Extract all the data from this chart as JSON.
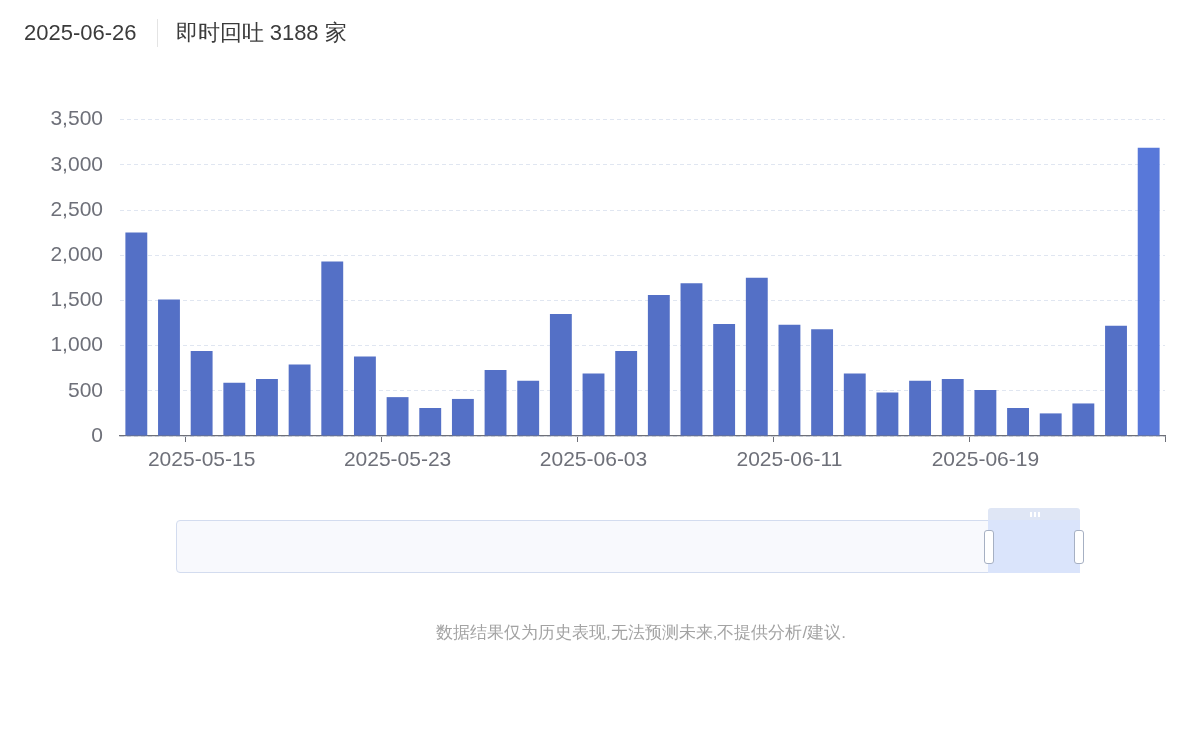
{
  "chart_data": {
    "type": "bar",
    "title": "2025-06-26",
    "subtitle": "即时回吐 3188 家",
    "categories": [
      null,
      null,
      "2025-05-15",
      null,
      null,
      null,
      null,
      null,
      "2025-05-23",
      null,
      null,
      null,
      null,
      null,
      "2025-06-03",
      null,
      null,
      null,
      null,
      null,
      "2025-06-11",
      null,
      null,
      null,
      null,
      null,
      "2025-06-19",
      null,
      null,
      null,
      null,
      null
    ],
    "values": [
      2250,
      1510,
      940,
      590,
      630,
      790,
      1930,
      880,
      430,
      310,
      410,
      730,
      610,
      1350,
      690,
      940,
      1560,
      1690,
      1240,
      1750,
      1230,
      1180,
      690,
      480,
      610,
      630,
      510,
      310,
      250,
      360,
      1220,
      3188
    ],
    "colors": [
      "#5470c6",
      "#5470c6",
      "#5470c6",
      "#5470c6",
      "#5470c6",
      "#5470c6",
      "#5470c6",
      "#5470c6",
      "#5470c6",
      "#5470c6",
      "#5470c6",
      "#5470c6",
      "#5470c6",
      "#5470c6",
      "#5470c6",
      "#5470c6",
      "#5470c6",
      "#5470c6",
      "#5470c6",
      "#5470c6",
      "#5470c6",
      "#5470c6",
      "#5470c6",
      "#5470c6",
      "#5470c6",
      "#5470c6",
      "#5470c6",
      "#5470c6",
      "#5470c6",
      "#5470c6",
      "#5470c6",
      "#5878d9"
    ],
    "ylim": [
      0,
      3500
    ],
    "yticks": [
      0,
      500,
      {
        "value": 1000,
        "label": "1,000"
      },
      {
        "value": 1500,
        "label": "1,500"
      },
      {
        "value": 2000,
        "label": "2,000"
      },
      {
        "value": 2500,
        "label": "2,500"
      },
      {
        "value": 3000,
        "label": "3,000"
      },
      {
        "value": 3500,
        "label": "3,500"
      }
    ],
    "grid": "y",
    "annotations": [
      "数据结果仅为历史表现,无法预测未来,不提供分析/建议."
    ]
  }
}
